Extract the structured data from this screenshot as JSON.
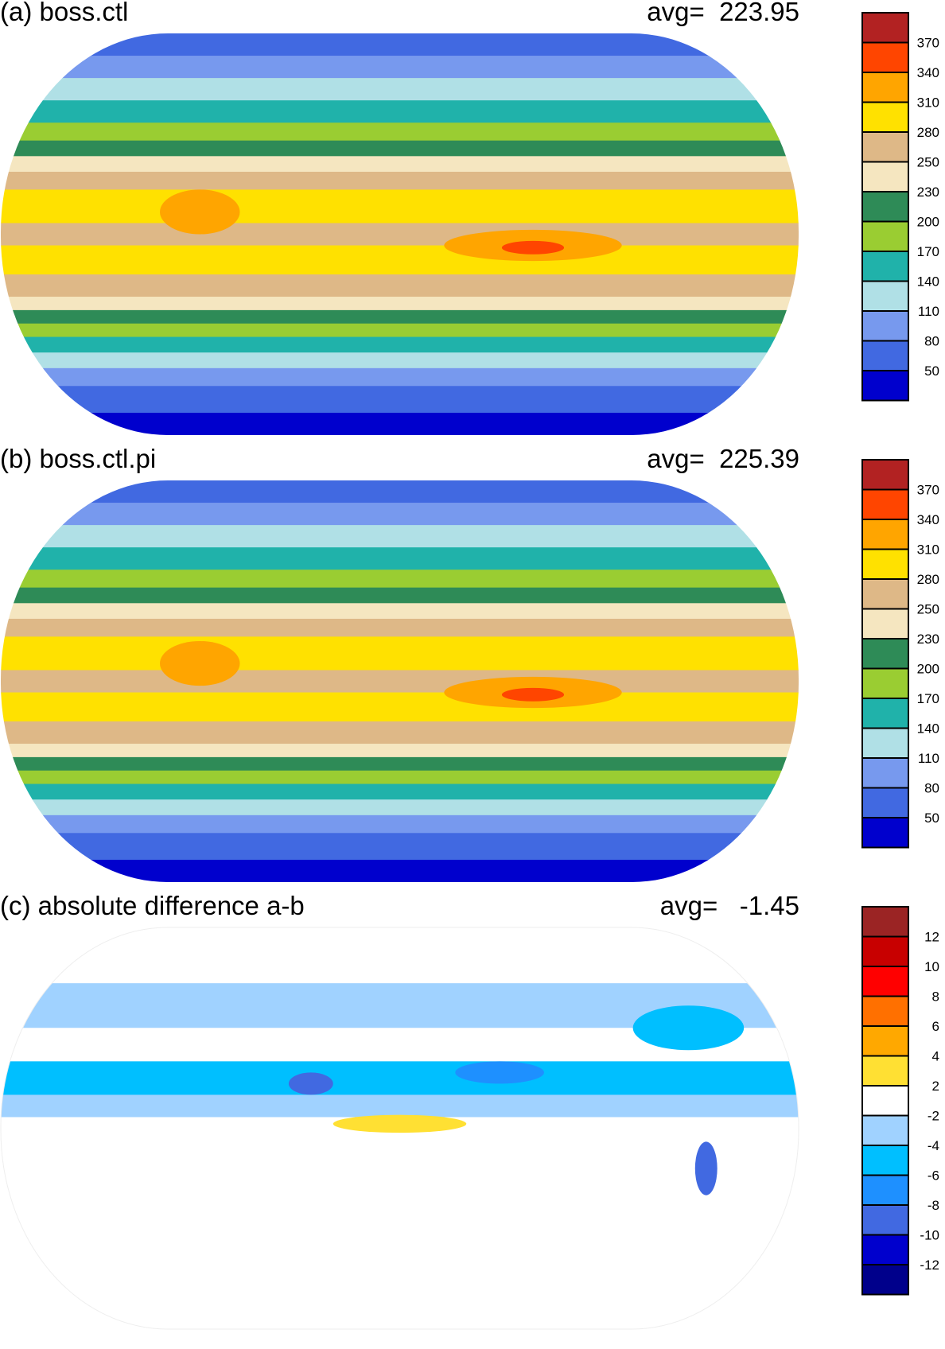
{
  "chart_data": [
    {
      "type": "heatmap",
      "title": "(a) boss.ctl",
      "avg_label": "avg=  223.95",
      "avg": 223.95,
      "colorbar": {
        "labels": [
          "370",
          "340",
          "310",
          "280",
          "250",
          "230",
          "200",
          "170",
          "140",
          "110",
          "80",
          "50"
        ],
        "colors": [
          "#b22222",
          "#ff4500",
          "#ffa500",
          "#ffe100",
          "#deb887",
          "#f5e6c0",
          "#2e8b57",
          "#9acd32",
          "#20b2aa",
          "#b0e0e6",
          "#7799ee",
          "#4169e1",
          "#0000cd"
        ]
      },
      "zonal_bands": [
        {
          "lat": [
            80,
            90
          ],
          "value": 60
        },
        {
          "lat": [
            70,
            80
          ],
          "value": 95
        },
        {
          "lat": [
            60,
            70
          ],
          "value": 125
        },
        {
          "lat": [
            50,
            60
          ],
          "value": 155
        },
        {
          "lat": [
            42,
            50
          ],
          "value": 185
        },
        {
          "lat": [
            35,
            42
          ],
          "value": 215
        },
        {
          "lat": [
            28,
            35
          ],
          "value": 240
        },
        {
          "lat": [
            20,
            28
          ],
          "value": 265
        },
        {
          "lat": [
            5,
            20
          ],
          "value": 295
        },
        {
          "lat": [
            -5,
            5
          ],
          "value": 265
        },
        {
          "lat": [
            -18,
            -5
          ],
          "value": 295
        },
        {
          "lat": [
            -28,
            -18
          ],
          "value": 265
        },
        {
          "lat": [
            -34,
            -28
          ],
          "value": 240
        },
        {
          "lat": [
            -40,
            -34
          ],
          "value": 215
        },
        {
          "lat": [
            -46,
            -40
          ],
          "value": 185
        },
        {
          "lat": [
            -53,
            -46
          ],
          "value": 155
        },
        {
          "lat": [
            -60,
            -53
          ],
          "value": 125
        },
        {
          "lat": [
            -68,
            -60
          ],
          "value": 95
        },
        {
          "lat": [
            -80,
            -68
          ],
          "value": 65
        },
        {
          "lat": [
            -90,
            -80
          ],
          "value": 40
        }
      ],
      "features": [
        {
          "lon": -150,
          "lat": -5,
          "rlon": 40,
          "rlat": 7,
          "value": 325
        },
        {
          "lon": -150,
          "lat": -6,
          "rlon": 14,
          "rlat": 3,
          "value": 355
        },
        {
          "lon": 60,
          "lat": 10,
          "rlon": 18,
          "rlat": 10,
          "value": 325
        }
      ]
    },
    {
      "type": "heatmap",
      "title": "(b) boss.ctl.pi",
      "avg_label": "avg=  225.39",
      "avg": 225.39,
      "colorbar": {
        "labels": [
          "370",
          "340",
          "310",
          "280",
          "250",
          "230",
          "200",
          "170",
          "140",
          "110",
          "80",
          "50"
        ],
        "colors": [
          "#b22222",
          "#ff4500",
          "#ffa500",
          "#ffe100",
          "#deb887",
          "#f5e6c0",
          "#2e8b57",
          "#9acd32",
          "#20b2aa",
          "#b0e0e6",
          "#7799ee",
          "#4169e1",
          "#0000cd"
        ]
      },
      "zonal_bands": [
        {
          "lat": [
            80,
            90
          ],
          "value": 60
        },
        {
          "lat": [
            70,
            80
          ],
          "value": 95
        },
        {
          "lat": [
            60,
            70
          ],
          "value": 125
        },
        {
          "lat": [
            50,
            60
          ],
          "value": 155
        },
        {
          "lat": [
            42,
            50
          ],
          "value": 185
        },
        {
          "lat": [
            35,
            42
          ],
          "value": 215
        },
        {
          "lat": [
            28,
            35
          ],
          "value": 240
        },
        {
          "lat": [
            20,
            28
          ],
          "value": 265
        },
        {
          "lat": [
            5,
            20
          ],
          "value": 295
        },
        {
          "lat": [
            -5,
            5
          ],
          "value": 265
        },
        {
          "lat": [
            -18,
            -5
          ],
          "value": 295
        },
        {
          "lat": [
            -28,
            -18
          ],
          "value": 265
        },
        {
          "lat": [
            -34,
            -28
          ],
          "value": 240
        },
        {
          "lat": [
            -40,
            -34
          ],
          "value": 215
        },
        {
          "lat": [
            -46,
            -40
          ],
          "value": 185
        },
        {
          "lat": [
            -53,
            -46
          ],
          "value": 155
        },
        {
          "lat": [
            -60,
            -53
          ],
          "value": 125
        },
        {
          "lat": [
            -68,
            -60
          ],
          "value": 95
        },
        {
          "lat": [
            -80,
            -68
          ],
          "value": 65
        },
        {
          "lat": [
            -90,
            -80
          ],
          "value": 40
        }
      ],
      "features": [
        {
          "lon": -150,
          "lat": -5,
          "rlon": 40,
          "rlat": 7,
          "value": 325
        },
        {
          "lon": -150,
          "lat": -6,
          "rlon": 14,
          "rlat": 3,
          "value": 355
        },
        {
          "lon": 60,
          "lat": 8,
          "rlon": 18,
          "rlat": 10,
          "value": 325
        }
      ]
    },
    {
      "type": "heatmap",
      "title": "(c) absolute difference a-b",
      "avg_label": "avg=   -1.45",
      "avg": -1.45,
      "colorbar": {
        "labels": [
          "12",
          "10",
          "8",
          "6",
          "4",
          "2",
          "-2",
          "-4",
          "-6",
          "-8",
          "-10",
          "-12"
        ],
        "colors": [
          "#9b2424",
          "#c80000",
          "#ff0000",
          "#ff7000",
          "#ffa800",
          "#ffe033",
          "#ffffff",
          "#a0d2ff",
          "#00bfff",
          "#1e90ff",
          "#4169e1",
          "#0000cd",
          "#00008b"
        ]
      },
      "zonal_bands": [
        {
          "lat": [
            65,
            90
          ],
          "value": 0
        },
        {
          "lat": [
            45,
            65
          ],
          "value": -3
        },
        {
          "lat": [
            30,
            45
          ],
          "value": 0
        },
        {
          "lat": [
            15,
            30
          ],
          "value": -5
        },
        {
          "lat": [
            5,
            15
          ],
          "value": -3
        },
        {
          "lat": [
            -90,
            5
          ],
          "value": 0
        }
      ],
      "features": [
        {
          "lon": -80,
          "lat": 45,
          "rlon": 25,
          "rlat": 10,
          "value": -5
        },
        {
          "lon": -72,
          "lat": -18,
          "rlon": 5,
          "rlat": 12,
          "value": -9
        },
        {
          "lon": 110,
          "lat": 20,
          "rlon": 10,
          "rlat": 5,
          "value": -9
        },
        {
          "lon": 150,
          "lat": 2,
          "rlon": 30,
          "rlat": 4,
          "value": 3
        },
        {
          "lon": -165,
          "lat": 25,
          "rlon": 20,
          "rlat": 5,
          "value": -7
        }
      ]
    }
  ]
}
